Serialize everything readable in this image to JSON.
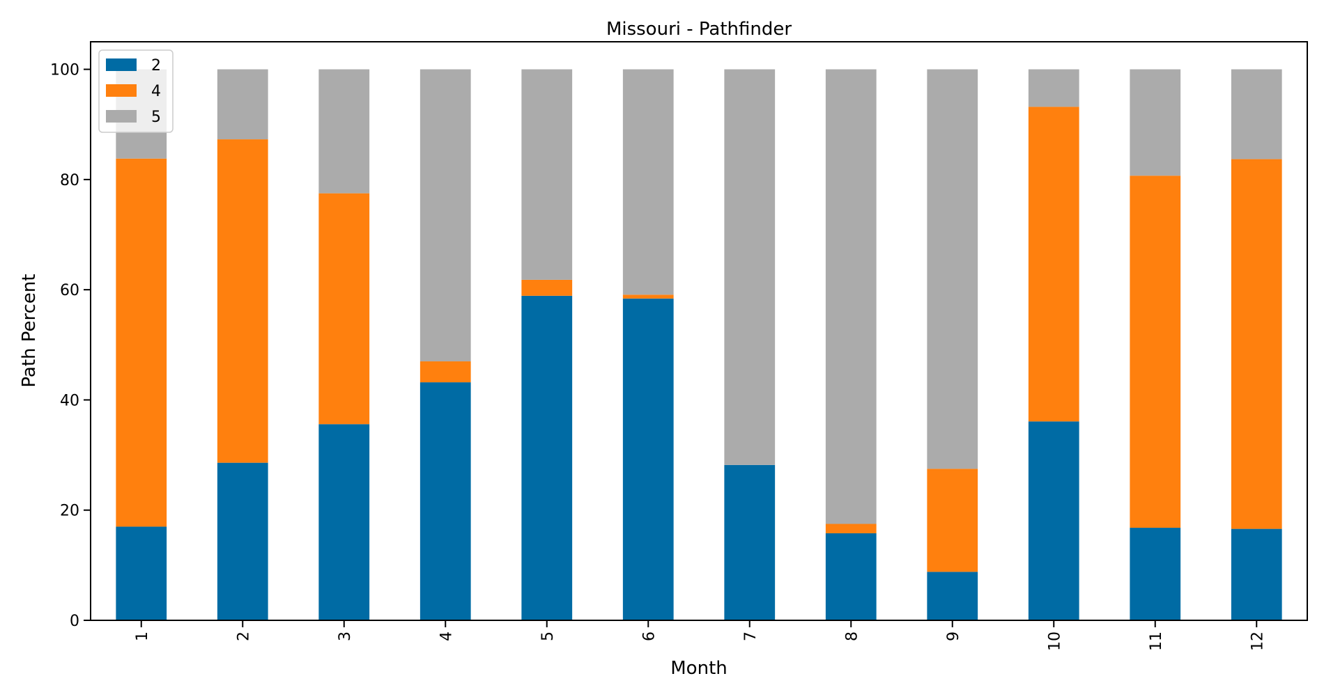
{
  "chart_data": {
    "type": "bar",
    "stacked": true,
    "title": "Missouri - Pathfinder",
    "xlabel": "Month",
    "ylabel": "Path Percent",
    "categories": [
      "1",
      "2",
      "3",
      "4",
      "5",
      "6",
      "7",
      "8",
      "9",
      "10",
      "11",
      "12"
    ],
    "ylim": [
      0,
      105
    ],
    "yticks": [
      0,
      20,
      40,
      60,
      80,
      100
    ],
    "grid": false,
    "legend_position": "top-left",
    "series": [
      {
        "name": "2",
        "color": "#006BA4",
        "values": [
          17.0,
          28.6,
          35.6,
          43.2,
          58.9,
          58.4,
          28.2,
          15.8,
          8.8,
          36.1,
          16.8,
          16.6
        ]
      },
      {
        "name": "4",
        "color": "#FF800E",
        "values": [
          66.8,
          58.7,
          41.9,
          3.8,
          2.9,
          0.7,
          0.0,
          1.7,
          18.7,
          57.1,
          63.9,
          67.1
        ]
      },
      {
        "name": "5",
        "color": "#ABABAB",
        "values": [
          16.2,
          12.7,
          22.5,
          53.0,
          38.2,
          40.9,
          71.8,
          82.5,
          72.5,
          6.8,
          19.3,
          16.3
        ]
      }
    ]
  }
}
